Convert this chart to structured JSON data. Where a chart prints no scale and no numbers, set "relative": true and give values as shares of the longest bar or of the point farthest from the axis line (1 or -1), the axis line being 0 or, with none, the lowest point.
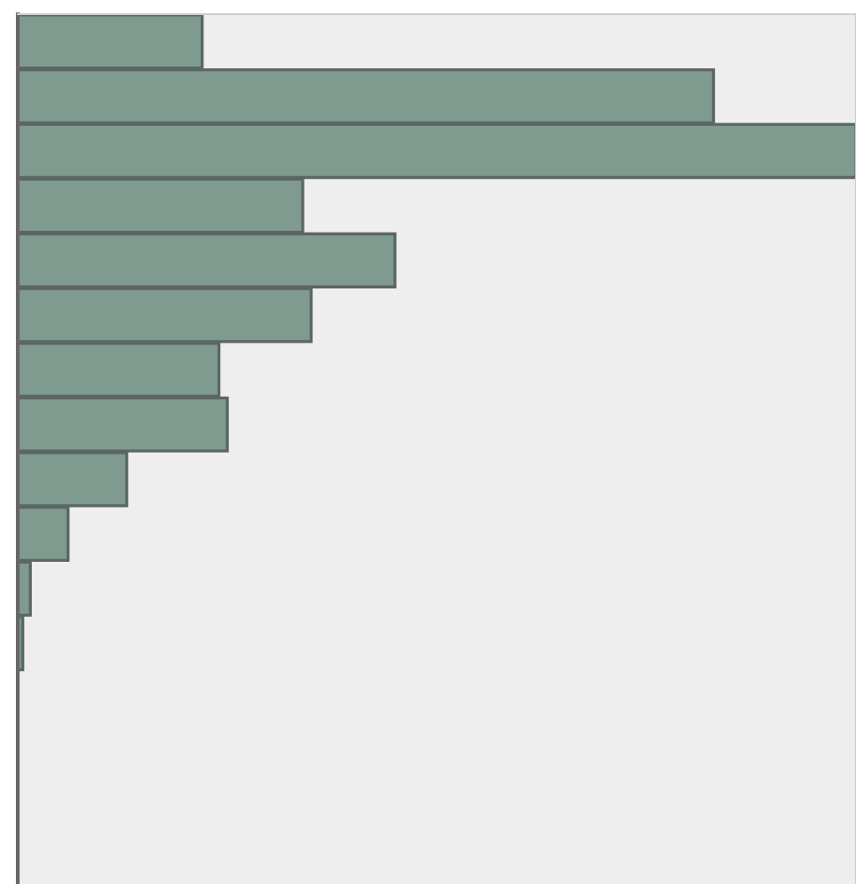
{
  "chart_data": {
    "type": "bar",
    "orientation": "horizontal",
    "relative": true,
    "categories": [
      null,
      null,
      null,
      null,
      null,
      null,
      null,
      null,
      null,
      null,
      null,
      null
    ],
    "values": [
      0.22,
      0.83,
      1,
      0.34,
      0.45,
      0.35,
      0.24,
      0.25,
      0.13,
      0.06,
      0.015,
      0.006
    ],
    "color": "#7f9a8f"
  }
}
